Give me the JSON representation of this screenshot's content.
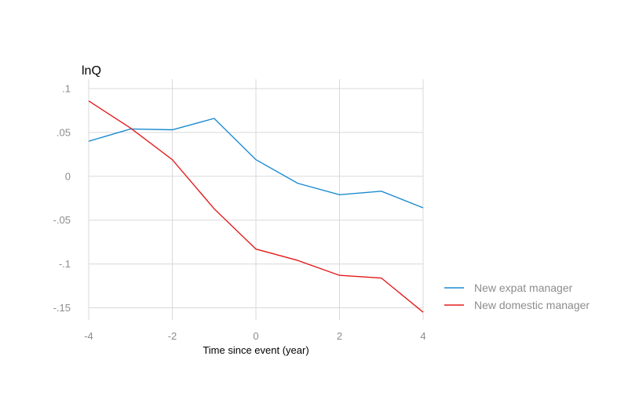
{
  "chart_data": {
    "type": "line",
    "ylabel": "lnQ",
    "xlabel": "Time since event (year)",
    "x": [
      -4,
      -3,
      -2,
      -1,
      0,
      1,
      2,
      3,
      4
    ],
    "xlim": [
      -4,
      4
    ],
    "ylim": [
      -0.165,
      0.1
    ],
    "x_ticks": [
      -4,
      -2,
      0,
      2,
      4
    ],
    "x_tick_labels": [
      "-4",
      "-2",
      "0",
      "2",
      "4"
    ],
    "y_ticks": [
      0.1,
      0.05,
      0,
      -0.05,
      -0.1,
      -0.15
    ],
    "y_tick_labels": [
      ".1",
      ".05",
      "0",
      "-.05",
      "-.1",
      "-.15"
    ],
    "grid": true,
    "legend_position": "right",
    "series": [
      {
        "name": "New expat manager",
        "color": "#1a8bd0",
        "values": [
          0.04,
          0.054,
          0.053,
          0.066,
          0.019,
          -0.008,
          -0.021,
          -0.017,
          -0.036
        ]
      },
      {
        "name": "New domestic manager",
        "color": "#e31a1c",
        "values": [
          0.086,
          0.055,
          0.019,
          -0.037,
          -0.083,
          -0.096,
          -0.113,
          -0.116,
          -0.155
        ]
      }
    ]
  }
}
